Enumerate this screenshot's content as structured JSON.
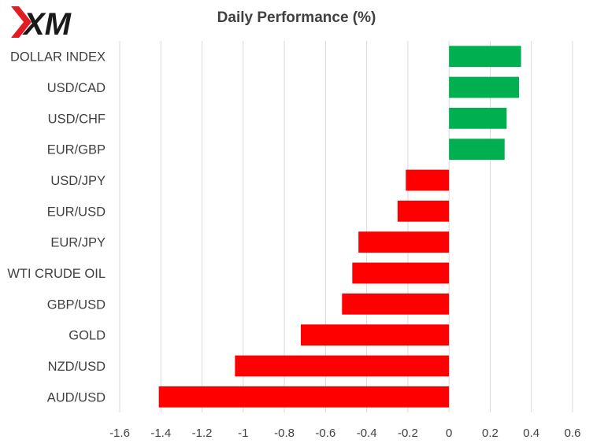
{
  "logo": {
    "text": "XM",
    "color": "#e31b23"
  },
  "chart_data": {
    "type": "bar",
    "orientation": "horizontal",
    "title": "Daily Performance (%)",
    "categories": [
      "DOLLAR INDEX",
      "USD/CAD",
      "USD/CHF",
      "EUR/GBP",
      "USD/JPY",
      "EUR/USD",
      "EUR/JPY",
      "WTI CRUDE OIL",
      "GBP/USD",
      "GOLD",
      "NZD/USD",
      "AUD/USD"
    ],
    "values": [
      0.35,
      0.34,
      0.28,
      0.27,
      -0.21,
      -0.25,
      -0.44,
      -0.47,
      -0.52,
      -0.72,
      -1.04,
      -1.41
    ],
    "xlim": [
      -1.6,
      0.6
    ],
    "xticks": [
      "-1.6",
      "-1.4",
      "-1.2",
      "-1",
      "-0.8",
      "-0.6",
      "-0.4",
      "-0.2",
      "0",
      "0.2",
      "0.4",
      "0.6"
    ],
    "grid": "vertical",
    "colors": {
      "positive": "#00b050",
      "negative": "#ff0000",
      "grid": "#d9d9d9",
      "text": "#404040"
    }
  }
}
